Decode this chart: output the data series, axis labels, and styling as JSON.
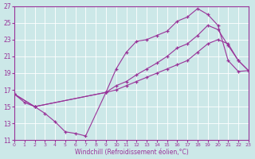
{
  "xlabel": "Windchill (Refroidissement éolien,°C)",
  "xlim": [
    0,
    23
  ],
  "ylim": [
    11,
    27
  ],
  "xticks": [
    0,
    1,
    2,
    3,
    4,
    5,
    6,
    7,
    8,
    9,
    10,
    11,
    12,
    13,
    14,
    15,
    16,
    17,
    18,
    19,
    20,
    21,
    22,
    23
  ],
  "yticks": [
    11,
    13,
    15,
    17,
    19,
    21,
    23,
    25,
    27
  ],
  "bg_color": "#cce8e8",
  "line_color": "#993399",
  "line1_x": [
    0,
    1,
    2,
    3,
    4,
    5,
    6,
    7,
    9,
    10,
    11,
    12,
    13,
    14,
    15,
    16,
    17,
    18,
    19,
    20,
    21,
    22,
    23
  ],
  "line1_y": [
    16.5,
    15.5,
    15.0,
    14.2,
    13.2,
    12.0,
    11.8,
    11.5,
    16.7,
    19.5,
    21.5,
    22.8,
    23.0,
    23.5,
    24.0,
    25.2,
    25.7,
    26.7,
    26.0,
    24.7,
    20.5,
    19.2,
    19.3
  ],
  "line2_x": [
    0,
    2,
    9,
    10,
    11,
    12,
    13,
    14,
    15,
    16,
    17,
    18,
    19,
    20,
    21,
    22,
    23
  ],
  "line2_y": [
    16.5,
    15.0,
    16.7,
    17.5,
    18.0,
    18.8,
    19.5,
    20.2,
    21.0,
    22.0,
    22.5,
    23.5,
    24.7,
    24.2,
    22.3,
    20.5,
    19.3
  ],
  "line3_x": [
    0,
    2,
    9,
    10,
    11,
    12,
    13,
    14,
    15,
    16,
    17,
    18,
    19,
    20,
    21,
    22,
    23
  ],
  "line3_y": [
    16.5,
    15.0,
    16.7,
    17.0,
    17.5,
    18.0,
    18.5,
    19.0,
    19.5,
    20.0,
    20.5,
    21.5,
    22.5,
    23.0,
    22.5,
    20.5,
    19.3
  ]
}
